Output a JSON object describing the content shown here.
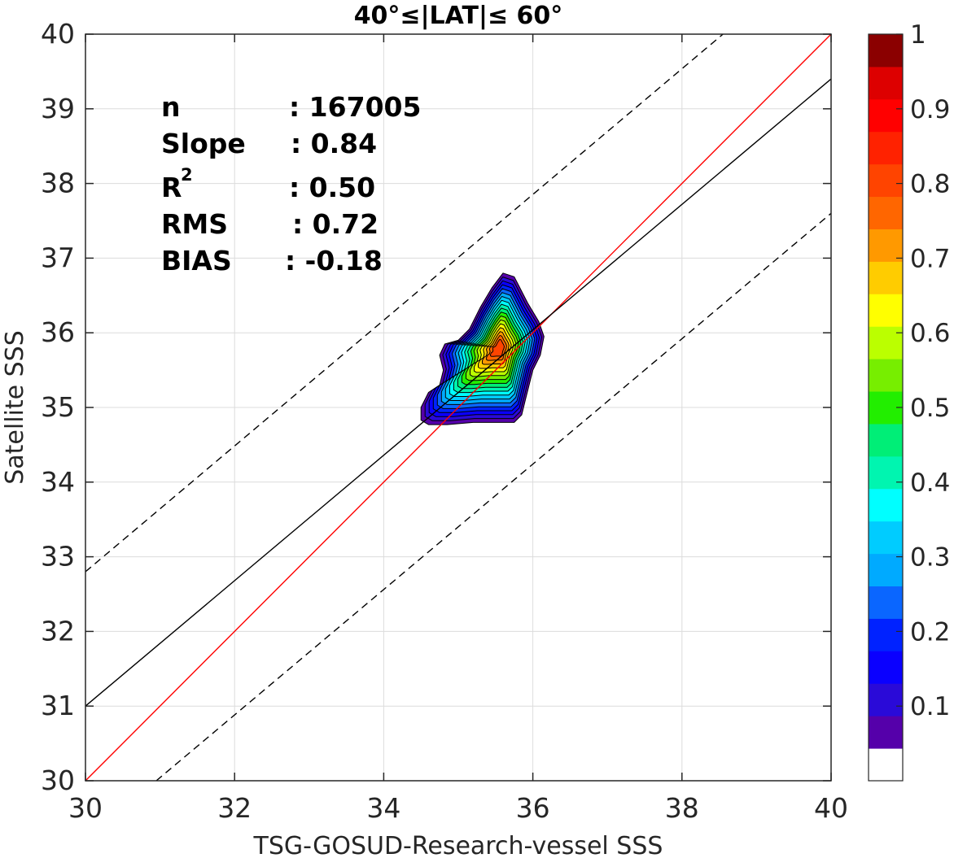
{
  "chart_data": {
    "type": "contour-scatter",
    "title": "40°≤|LAT|≤ 60°",
    "xlabel": "TSG-GOSUD-Research-vessel SSS",
    "ylabel": "Satellite SSS",
    "xlim": [
      30,
      40
    ],
    "ylim": [
      30,
      40
    ],
    "xticks": [
      "30",
      "32",
      "34",
      "36",
      "38",
      "40"
    ],
    "yticks": [
      "30",
      "31",
      "32",
      "33",
      "34",
      "35",
      "36",
      "37",
      "38",
      "39",
      "40"
    ],
    "grid": true,
    "stats": {
      "n_label": "n",
      "n_value": ": 167005",
      "slope_label": "Slope",
      "slope_value": ": 0.84",
      "r2_label": "R",
      "r2_sup": "2",
      "r2_value": ": 0.50",
      "rms_label": "RMS",
      "rms_value": ": 0.72",
      "bias_label": "BIAS",
      "bias_value": ": -0.18"
    },
    "lines": [
      {
        "name": "one-to-one",
        "color": "#ff0000",
        "dash": false,
        "points": [
          [
            30,
            30
          ],
          [
            40,
            40
          ]
        ]
      },
      {
        "name": "regression-fit",
        "color": "#000000",
        "dash": false,
        "points": [
          [
            30,
            31.0
          ],
          [
            40,
            39.4
          ]
        ]
      },
      {
        "name": "upper-bound",
        "color": "#000000",
        "dash": true,
        "points": [
          [
            30,
            32.8
          ],
          [
            38.55,
            40
          ]
        ]
      },
      {
        "name": "lower-bound",
        "color": "#000000",
        "dash": true,
        "points": [
          [
            30.95,
            30
          ],
          [
            40,
            37.6
          ]
        ]
      }
    ],
    "density_peak": {
      "x": 35.55,
      "y": 35.8
    },
    "colorbar": {
      "ticks": [
        "0.1",
        "0.2",
        "0.3",
        "0.4",
        "0.5",
        "0.6",
        "0.7",
        "0.8",
        "0.9",
        "1"
      ],
      "colors": [
        "#ffffff",
        "#5500aa",
        "#2a0ad8",
        "#0a00ff",
        "#0022ff",
        "#0a66ff",
        "#00aaff",
        "#00ccff",
        "#00ffff",
        "#00f5b0",
        "#00ee77",
        "#22ee00",
        "#77ee00",
        "#bbff00",
        "#ffff00",
        "#ffcc00",
        "#ff9900",
        "#ff6600",
        "#ff4400",
        "#ff2200",
        "#ff0000",
        "#dd0000",
        "#8b0000"
      ]
    }
  }
}
